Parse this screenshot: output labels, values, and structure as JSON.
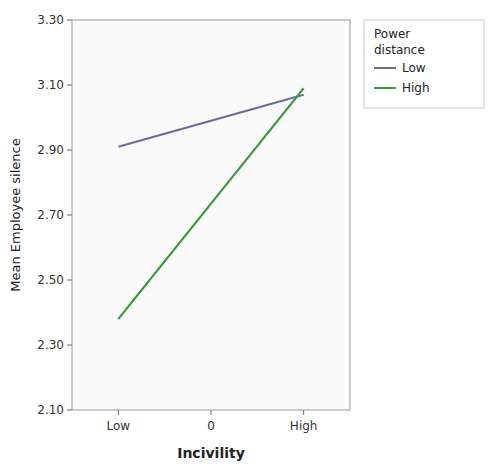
{
  "chart_data": {
    "type": "line",
    "xlabel": "Incivility",
    "ylabel": "Mean Employee silence",
    "x": [
      -1,
      1
    ],
    "xlim": [
      -1.5,
      1.5
    ],
    "xticks": [
      {
        "value": -1,
        "label": "Low"
      },
      0,
      {
        "value": 1,
        "label": "High"
      }
    ],
    "ylim": [
      2.1,
      3.3
    ],
    "yticks": [
      {
        "value": 2.1,
        "label": "2.10"
      },
      {
        "value": 2.3,
        "label": "2.30"
      },
      {
        "value": 2.5,
        "label": "2.50"
      },
      {
        "value": 2.7,
        "label": "2.70"
      },
      {
        "value": 2.9,
        "label": "2.90"
      },
      {
        "value": 3.1,
        "label": "3.10"
      },
      {
        "value": 3.3,
        "label": "3.30"
      }
    ],
    "grid": false,
    "legend": "right",
    "legend_title": "Power\ndistance",
    "series": [
      {
        "name": "Low",
        "color": "#6b6b9e",
        "values": [
          2.91,
          3.07
        ]
      },
      {
        "name": "High",
        "color": "#3a9a3a",
        "values": [
          2.38,
          3.09
        ]
      }
    ]
  }
}
